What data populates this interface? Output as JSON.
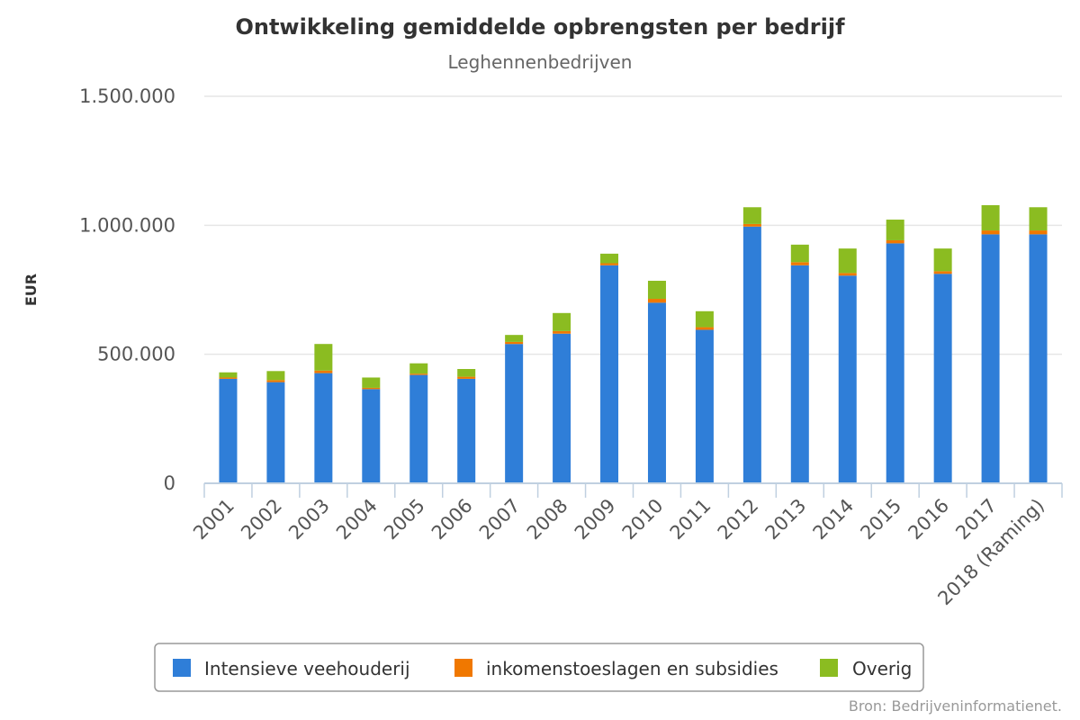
{
  "chart_data": {
    "type": "bar",
    "stacked": true,
    "title": "Ontwikkeling gemiddelde opbrengsten per bedrijf",
    "subtitle": "Leghennenbedrijven",
    "ylabel": "EUR",
    "ylim": [
      0,
      1500000
    ],
    "yticks": [
      0,
      500000,
      1000000,
      1500000
    ],
    "ytick_labels": [
      "0",
      "500.000",
      "1.000.000",
      "1.500.000"
    ],
    "grid": true,
    "legend_position": "bottom",
    "categories": [
      "2001",
      "2002",
      "2003",
      "2004",
      "2005",
      "2006",
      "2007",
      "2008",
      "2009",
      "2010",
      "2011",
      "2012",
      "2013",
      "2014",
      "2015",
      "2016",
      "2017",
      "2018 (Raming)"
    ],
    "series": [
      {
        "name": "Intensieve veehouderij",
        "color": "#2f7ed8",
        "values": [
          405000,
          392000,
          427000,
          365000,
          420000,
          405000,
          540000,
          580000,
          845000,
          700000,
          595000,
          995000,
          845000,
          805000,
          930000,
          812000,
          965000,
          965000
        ]
      },
      {
        "name": "inkomenstoeslagen en subsidies",
        "color": "#f07800",
        "values": [
          5000,
          8000,
          10000,
          5000,
          5000,
          8000,
          8000,
          10000,
          8000,
          15000,
          10000,
          10000,
          12000,
          10000,
          12000,
          10000,
          15000,
          15000
        ]
      },
      {
        "name": "Overig",
        "color": "#8bbc21",
        "values": [
          20000,
          35000,
          103000,
          40000,
          40000,
          30000,
          27000,
          70000,
          37000,
          70000,
          62000,
          65000,
          68000,
          95000,
          80000,
          88000,
          98000,
          90000
        ]
      }
    ],
    "credits": "Bron: Bedrijveninformatienet."
  }
}
